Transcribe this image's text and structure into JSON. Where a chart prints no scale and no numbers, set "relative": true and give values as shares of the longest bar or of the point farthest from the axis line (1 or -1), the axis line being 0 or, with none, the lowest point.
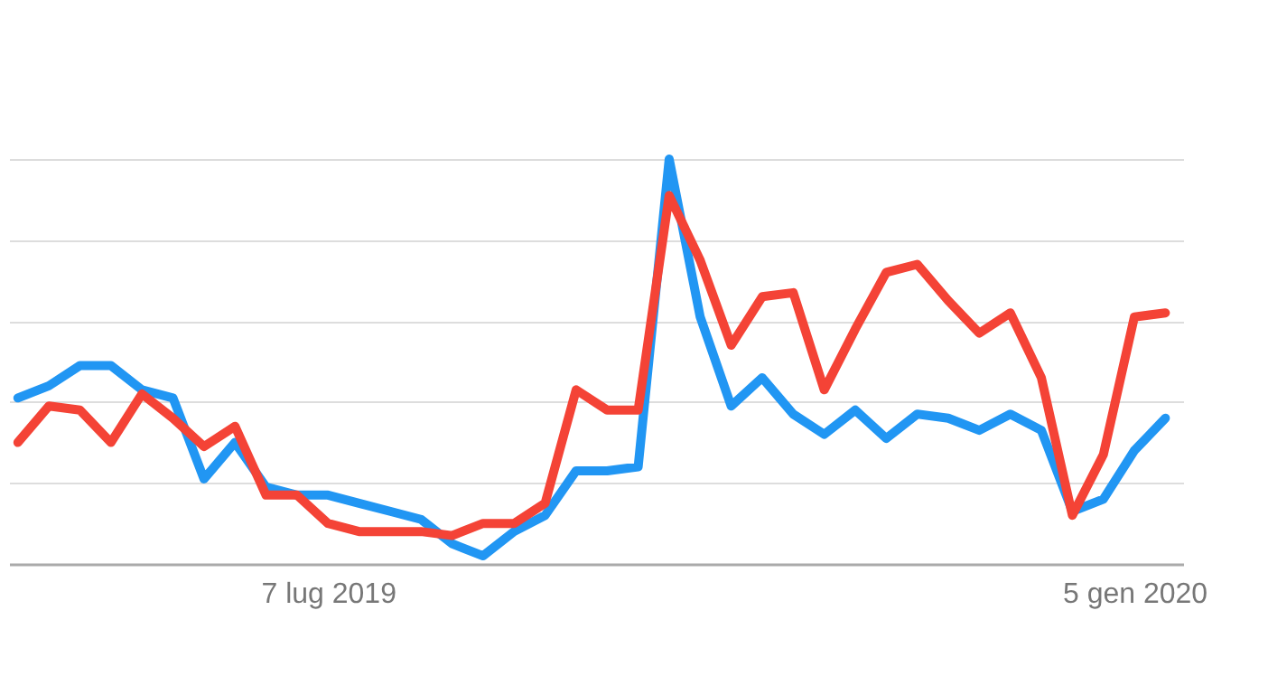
{
  "chart_data": {
    "type": "line",
    "relative": true,
    "grid": "y",
    "marker": "none",
    "line_style": "solid",
    "x": [
      "2019-04-28",
      "2019-05-05",
      "2019-05-12",
      "2019-05-19",
      "2019-05-26",
      "2019-06-02",
      "2019-06-09",
      "2019-06-16",
      "2019-06-23",
      "2019-06-30",
      "2019-07-07",
      "2019-07-14",
      "2019-07-21",
      "2019-07-28",
      "2019-08-04",
      "2019-08-11",
      "2019-08-18",
      "2019-08-25",
      "2019-09-01",
      "2019-09-08",
      "2019-09-15",
      "2019-09-22",
      "2019-09-29",
      "2019-10-06",
      "2019-10-13",
      "2019-10-20",
      "2019-10-27",
      "2019-11-03",
      "2019-11-10",
      "2019-11-17",
      "2019-11-24",
      "2019-12-01",
      "2019-12-08",
      "2019-12-15",
      "2019-12-22",
      "2019-12-29",
      "2020-01-05",
      "2020-01-12"
    ],
    "xlim": [
      "2019-04-26",
      "2020-01-16"
    ],
    "xticks": [
      {
        "value": "2019-07-07",
        "label": "7 lug 2019"
      },
      {
        "value": "2020-01-05",
        "label": "5 gen 2020"
      }
    ],
    "series": [
      {
        "color": "#2196f3",
        "values": [
          0.41,
          0.44,
          0.49,
          0.49,
          0.43,
          0.41,
          0.21,
          0.3,
          0.19,
          0.17,
          0.17,
          0.15,
          0.13,
          0.11,
          0.05,
          0.02,
          0.08,
          0.12,
          0.23,
          0.23,
          0.24,
          1,
          0.61,
          0.39,
          0.46,
          0.37,
          0.32,
          0.38,
          0.31,
          0.37,
          0.36,
          0.33,
          0.37,
          0.33,
          0.13,
          0.16,
          0.28,
          0.36
        ]
      },
      {
        "color": "#f44336",
        "values": [
          0.3,
          0.39,
          0.38,
          0.3,
          0.42,
          0.36,
          0.29,
          0.34,
          0.17,
          0.17,
          0.1,
          0.08,
          0.08,
          0.08,
          0.07,
          0.1,
          0.1,
          0.15,
          0.43,
          0.38,
          0.38,
          0.91,
          0.75,
          0.54,
          0.66,
          0.67,
          0.43,
          0.58,
          0.72,
          0.74,
          0.65,
          0.57,
          0.62,
          0.46,
          0.12,
          0.27,
          0.61,
          0.62
        ]
      }
    ]
  }
}
